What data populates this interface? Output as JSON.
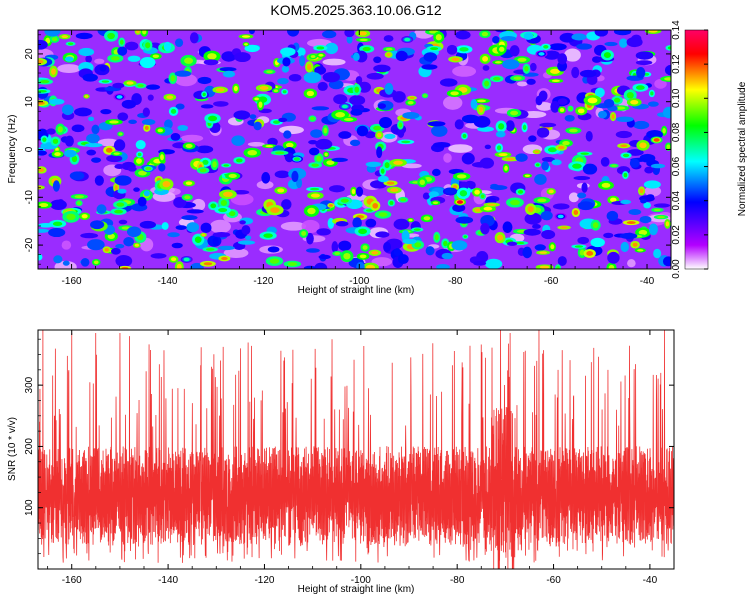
{
  "title": "KOM5.2025.363.10.06.G12",
  "chart_data": [
    {
      "type": "heatmap",
      "xlabel": "Height of straight line (km)",
      "ylabel": "Frequency (Hz)",
      "xlim": [
        -167,
        -35
      ],
      "ylim": [
        -25,
        25
      ],
      "x_ticks": [
        "-160",
        "-140",
        "-120",
        "-100",
        "-80",
        "-60",
        "-40"
      ],
      "x_tick_values": [
        -160,
        -140,
        -120,
        -100,
        -80,
        -60,
        -40
      ],
      "y_ticks": [
        "20",
        "10",
        "0",
        "-10",
        "-20"
      ],
      "y_tick_values": [
        20,
        10,
        0,
        -10,
        -20
      ],
      "colorbar": {
        "label": "Normalized spectral amplitude",
        "range": [
          0,
          0.14
        ],
        "ticks": [
          "0.00",
          "0.02",
          "0.04",
          "0.06",
          "0.08",
          "0.10",
          "0.12",
          "0.14"
        ],
        "tick_values": [
          0,
          0.02,
          0.04,
          0.06,
          0.08,
          0.1,
          0.12,
          0.14
        ],
        "colors": [
          "#ffffff",
          "#b300ff",
          "#0000ff",
          "#00ffff",
          "#00ff00",
          "#ffff00",
          "#ff0000",
          "#ff0066"
        ]
      },
      "peaks": [
        {
          "x": -79,
          "y": -11,
          "value": 0.13
        },
        {
          "x": -38,
          "y": 2,
          "value": 0.12
        },
        {
          "x": -144,
          "y": -4,
          "value": 0.09
        },
        {
          "x": -113,
          "y": -2,
          "value": 0.08
        },
        {
          "x": -136,
          "y": -23,
          "value": 0.07
        },
        {
          "x": -103,
          "y": 9,
          "value": 0.07
        },
        {
          "x": -62,
          "y": 20,
          "value": 0.06
        },
        {
          "x": -90,
          "y": 23,
          "value": 0.07
        },
        {
          "x": -150,
          "y": 11,
          "value": 0.06
        },
        {
          "x": -58,
          "y": -14,
          "value": 0.06
        }
      ]
    },
    {
      "type": "line",
      "xlabel": "Height of straight line (km)",
      "ylabel": "SNR (10 * v/v)",
      "xlim": [
        -167,
        -35
      ],
      "ylim": [
        0,
        390
      ],
      "x_ticks": [
        "-160",
        "-140",
        "-120",
        "-100",
        "-80",
        "-60",
        "-40"
      ],
      "x_tick_values": [
        -160,
        -140,
        -120,
        -100,
        -80,
        -60,
        -40
      ],
      "y_ticks": [
        "100",
        "200",
        "300"
      ],
      "y_tick_values": [
        100,
        200,
        300
      ],
      "series": [
        {
          "name": "SNR",
          "color": "#f03030",
          "baseline": 120,
          "typical_spread": 70,
          "max": 390,
          "min": 0,
          "high_activity_region": [
            -73,
            -68
          ],
          "spikes": [
            {
              "x": -166,
              "y": 390
            },
            {
              "x": -160,
              "y": 385
            },
            {
              "x": -155,
              "y": 385
            },
            {
              "x": -150,
              "y": 385
            },
            {
              "x": -148,
              "y": 380
            },
            {
              "x": -131,
              "y": 330
            },
            {
              "x": -116,
              "y": 340
            },
            {
              "x": -106,
              "y": 375
            },
            {
              "x": -71,
              "y": 390
            },
            {
              "x": -69,
              "y": 385
            },
            {
              "x": -63,
              "y": 390
            },
            {
              "x": -37,
              "y": 390
            }
          ]
        }
      ]
    }
  ]
}
